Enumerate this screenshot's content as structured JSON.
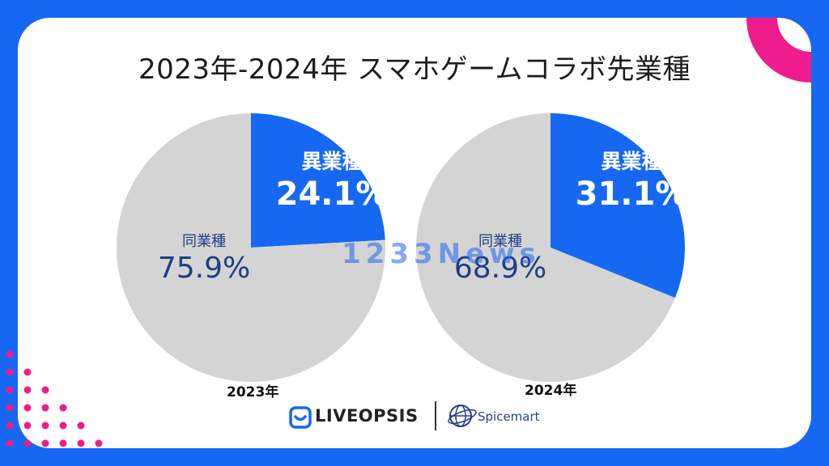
{
  "title": "2023年-2024年 スマホゲームコラボ先業種",
  "colors": {
    "background": "#1668f2",
    "other_industry": "#1668f2",
    "same_industry": "#d4d4d4",
    "accent_pink": "#ee1c8c"
  },
  "chart_data": [
    {
      "type": "pie",
      "xlabel": "2023年",
      "slices": [
        {
          "label": "異業種",
          "value": 24.1,
          "display": "24.1%",
          "color": "#1668f2"
        },
        {
          "label": "同業種",
          "value": 75.9,
          "display": "75.9%",
          "color": "#d4d4d4"
        }
      ]
    },
    {
      "type": "pie",
      "xlabel": "2024年",
      "slices": [
        {
          "label": "異業種",
          "value": 31.1,
          "display": "31.1%",
          "color": "#1668f2"
        },
        {
          "label": "同業種",
          "value": 68.9,
          "display": "68.9%",
          "color": "#d4d4d4"
        }
      ]
    }
  ],
  "logos": {
    "liveopsis": "LIVEOPSIS",
    "spicemart": "Spicemart",
    "watermark": "1233News"
  }
}
